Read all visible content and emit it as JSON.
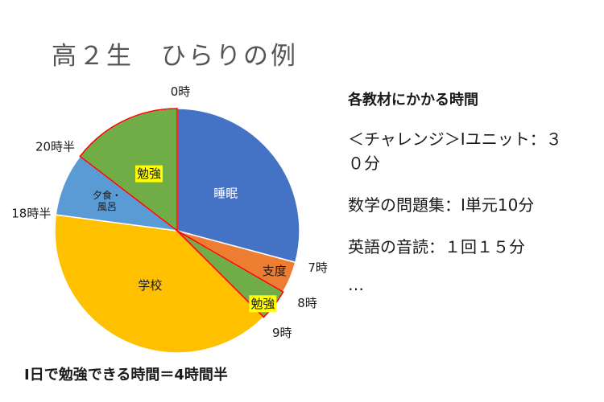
{
  "title": "高２生　ひらりの例",
  "chart_data": {
    "type": "pie",
    "title": "高２生　ひらりの例",
    "hours_per_day": 24,
    "segments": [
      {
        "label": "睡眠",
        "start": "0時",
        "end": "7時",
        "hours": 7,
        "color": "#4472C4",
        "label_bg": ""
      },
      {
        "label": "支度",
        "start": "7時",
        "end": "8時",
        "hours": 1,
        "color": "#ED7D31",
        "label_bg": ""
      },
      {
        "label": "勉強",
        "start": "8時",
        "end": "9時",
        "hours": 1,
        "color": "#70AD47",
        "label_bg": "#FFFF00"
      },
      {
        "label": "学校",
        "start": "9時",
        "end": "18時半",
        "hours": 9.5,
        "color": "#FFC000",
        "label_bg": ""
      },
      {
        "label": "夕食・風呂",
        "start": "18時半",
        "end": "20時半",
        "hours": 2,
        "color": "#5B9BD5",
        "label_bg": ""
      },
      {
        "label": "勉強",
        "start": "20時半",
        "end": "0時",
        "hours": 3.5,
        "color": "#70AD47",
        "label_bg": "#FFFF00"
      }
    ],
    "time_labels": [
      {
        "text": "0時",
        "hour": 0
      },
      {
        "text": "7時",
        "hour": 7
      },
      {
        "text": "8時",
        "hour": 8
      },
      {
        "text": "9時",
        "hour": 9
      },
      {
        "text": "18時半",
        "hour": 18.5
      },
      {
        "text": "20時半",
        "hour": 20.5
      }
    ],
    "highlight_outline_color": "#FF0000"
  },
  "side_panel": {
    "heading": "各教材にかかる時間",
    "items": [
      "＜チャレンジ＞Iユニット：３０分",
      "数学の問題集：I単元10分",
      "英語の音読：１回１５分"
    ],
    "ellipsis": "…"
  },
  "summary": "I日で勉強できる時間＝4時間半"
}
